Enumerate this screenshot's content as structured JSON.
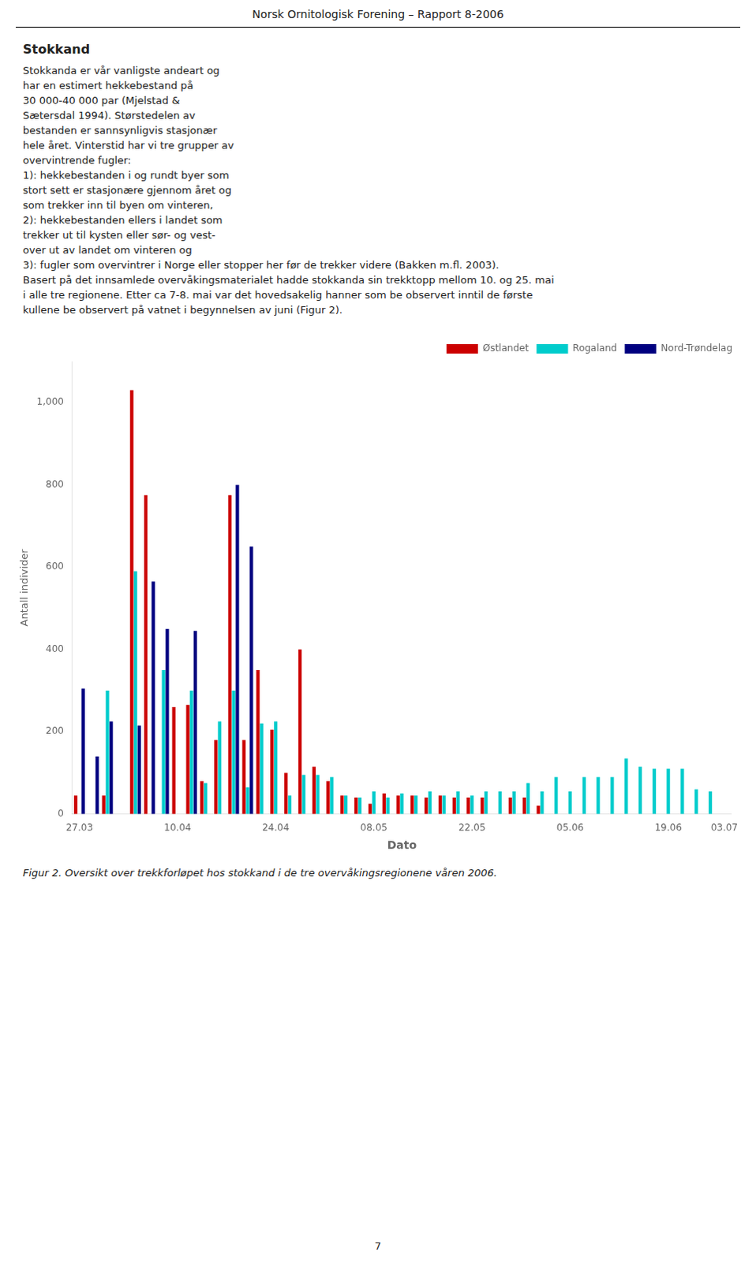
{
  "chart_data": {
    "type": "bar",
    "title": "Figur 2. Oversikt over trekkforløpet hos stokkand i de tre overvåkingsregionene våren 2006.",
    "annotations": [
      "Norsk Ornitologisk Forening – Rapport 8-2006",
      "Stokkand",
      "Stokkanda er vår vanligste andeart og",
      "har en estimert hekkebestand på",
      "30 000-40 000 par (Mjelstad &",
      "Sætersdal 1994). Størstedelen av",
      "bestanden er sannsynligvis stasjonær",
      "hele året. Vinterstid har vi tre grupper av",
      "overvintrende fugler:",
      "1): hekkebestanden i og rundt byer som",
      "stort sett er stasjonære gjennom året og",
      "som trekker inn til byen om vinteren,",
      "2): hekkebestanden ellers i landet som",
      "trekker ut til kysten eller sør- og vest-",
      "over ut av landet om vinteren og",
      "3): fugler som overvintrer i Norge eller stopper her før de trekker videre (Bakken m.fl. 2003).",
      "Basert på det innsamlede overvåkingsmaterialet hadde stokkanda sin trekktopp mellom 10. og 25. mai",
      "i alle tre regionene. Etter ca 7-8. mai var det hovedsakelig hanner som be observert inntil de første",
      "kullene be observert på vatnet i begynnelsen av juni (Figur 2).",
      "7"
    ],
    "x_label": "Dato",
    "y_label": "Antall individer",
    "categories": [
      "27.03",
      null,
      null,
      null,
      null,
      null,
      null,
      "10.04",
      null,
      null,
      null,
      null,
      null,
      null,
      "24.04",
      null,
      null,
      null,
      null,
      null,
      null,
      "08.05",
      null,
      null,
      null,
      null,
      null,
      null,
      "22.05",
      null,
      null,
      null,
      null,
      null,
      null,
      "05.06",
      null,
      null,
      null,
      null,
      null,
      null,
      "19.06",
      null,
      null,
      null,
      "03.07"
    ],
    "series": [
      {
        "name": "Østlandet",
        "color": "#cc0000",
        "values": [
          45,
          0,
          45,
          0,
          1030,
          775,
          0,
          260,
          265,
          80,
          180,
          775,
          180,
          350,
          205,
          100,
          400,
          115,
          80,
          45,
          40,
          25,
          50,
          45,
          45,
          40,
          45,
          40,
          40,
          40,
          0,
          40,
          40,
          20,
          0,
          0,
          0,
          0,
          0,
          0,
          0,
          0,
          0,
          0,
          0,
          0,
          0
        ]
      },
      {
        "name": "Rogaland",
        "color": "#00cccc",
        "values": [
          0,
          0,
          300,
          0,
          590,
          0,
          350,
          0,
          300,
          75,
          225,
          300,
          65,
          220,
          225,
          45,
          95,
          95,
          90,
          45,
          40,
          55,
          40,
          50,
          45,
          55,
          45,
          55,
          45,
          55,
          55,
          55,
          75,
          55,
          90,
          55,
          90,
          90,
          90,
          135,
          115,
          110,
          110,
          110,
          60,
          55,
          0
        ]
      },
      {
        "name": "Nord-Trøndelag",
        "color": "#000080",
        "values": [
          305,
          140,
          225,
          0,
          215,
          565,
          450,
          0,
          445,
          0,
          0,
          800,
          650,
          0,
          0,
          0,
          0,
          0,
          0,
          0,
          0,
          0,
          0,
          0,
          0,
          0,
          0,
          0,
          0,
          0,
          0,
          0,
          0,
          0,
          0,
          0,
          0,
          0,
          0,
          0,
          0,
          0,
          0,
          0,
          0,
          0,
          0
        ]
      }
    ],
    "ylim": [
      0,
      1100
    ],
    "yticks": [
      0,
      200,
      400,
      600,
      800,
      1000
    ],
    "grid": false,
    "legend": "upper right"
  }
}
